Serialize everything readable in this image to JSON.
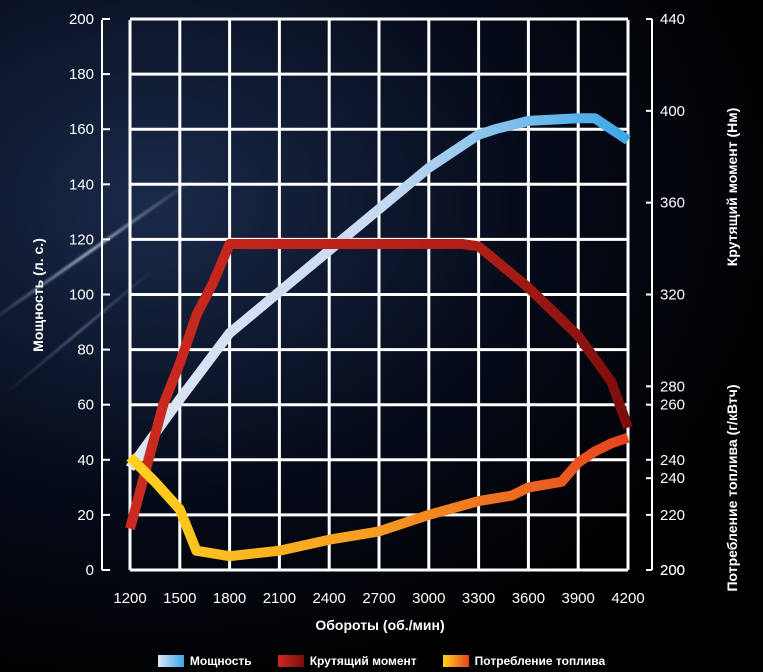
{
  "chart_data": {
    "type": "line",
    "xlabel": "Обороты (об./мин)",
    "x_ticks": [
      1200,
      1500,
      1800,
      2100,
      2400,
      2700,
      3000,
      3300,
      3600,
      3900,
      4200
    ],
    "xlim": [
      1200,
      4200
    ],
    "y_left": {
      "label": "Мощность (л. с.)",
      "lim": [
        0,
        200
      ],
      "ticks": [
        0,
        20,
        40,
        60,
        80,
        100,
        120,
        140,
        160,
        180,
        200
      ]
    },
    "y_right_top": {
      "label": "Крутящий момент (Нм)",
      "lim": [
        200,
        440
      ],
      "ticks": [
        200,
        240,
        280,
        320,
        360,
        400,
        440
      ]
    },
    "y_right_bottom": {
      "label": "Потребление топлива (г/кВтч)",
      "lim": [
        200,
        260
      ],
      "ticks": [
        200,
        220,
        240,
        260
      ]
    },
    "grid": true,
    "legend_position": "bottom",
    "series": [
      {
        "name": "Мощность",
        "axis": "power",
        "colors": [
          "#dde6f5",
          "#3aa7e6"
        ],
        "x": [
          1200,
          1500,
          1800,
          2100,
          2400,
          2700,
          3000,
          3200,
          3300,
          3400,
          3600,
          3900,
          4000,
          4200
        ],
        "y": [
          37,
          62,
          86,
          101,
          116,
          131,
          146,
          154,
          158,
          160,
          163,
          164,
          164,
          156
        ]
      },
      {
        "name": "Крутящий момент",
        "axis": "torque",
        "colors": [
          "#cc2a20",
          "#7a0e0c"
        ],
        "x": [
          1200,
          1400,
          1500,
          1600,
          1700,
          1800,
          2100,
          2700,
          3000,
          3200,
          3300,
          3600,
          3900,
          4100,
          4200
        ],
        "y": [
          218,
          272,
          290,
          311,
          325,
          342,
          342,
          342,
          342,
          342,
          341,
          323,
          302,
          282,
          262
        ]
      },
      {
        "name": "Потребление топлива",
        "axis": "fuel",
        "colors": [
          "#ffd21e",
          "#e6431e"
        ],
        "x": [
          1200,
          1350,
          1500,
          1600,
          1800,
          2100,
          2400,
          2700,
          3000,
          3300,
          3500,
          3600,
          3800,
          3900,
          4000,
          4100,
          4200
        ],
        "y": [
          241,
          232,
          222,
          207,
          205,
          207,
          211,
          214,
          220,
          225,
          227,
          230,
          232,
          239,
          243,
          246,
          248
        ]
      }
    ]
  }
}
